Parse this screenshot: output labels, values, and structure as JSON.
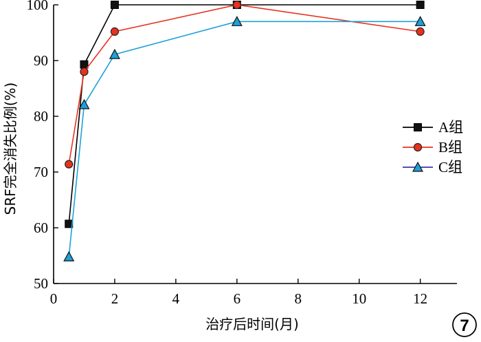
{
  "chart_data": {
    "type": "line",
    "xlabel": "治疗后时间(月)",
    "ylabel": "SRF完全消失比例(%)",
    "xlim": [
      0,
      13.2
    ],
    "ylim": [
      50,
      100
    ],
    "x_ticks": [
      0,
      2,
      4,
      6,
      8,
      10,
      12
    ],
    "y_ticks": [
      50,
      60,
      70,
      80,
      90,
      100
    ],
    "x": [
      0.5,
      1,
      2,
      6,
      12
    ],
    "legend_position": "right",
    "grid": false,
    "series": [
      {
        "name": "A组",
        "values": [
          60.7,
          89.3,
          100,
          100,
          100
        ],
        "color": "#000000",
        "marker": "square",
        "marker_fill": "#111111",
        "legend_line": "#000000"
      },
      {
        "name": "B组",
        "values": [
          71.4,
          88.0,
          95.2,
          100,
          95.2
        ],
        "color": "#e8321e",
        "marker": "circle",
        "marker_fill": "#e8321e",
        "legend_line": "#e8321e"
      },
      {
        "name": "C组",
        "values": [
          54.8,
          82.1,
          91.1,
          97.0,
          97.0
        ],
        "color": "#1ea0d8",
        "marker": "triangle",
        "marker_fill": "#1ea0d8",
        "legend_line": "#3a3aa8"
      }
    ]
  },
  "figure_number": "7"
}
